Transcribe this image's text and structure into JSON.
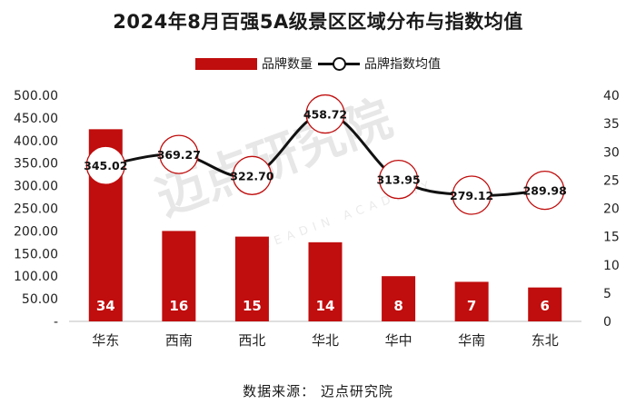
{
  "title": "2024年8月百强5A级景区区域分布与指数均值",
  "legend": {
    "bar_label": "品牌数量",
    "line_label": "品牌指数均值"
  },
  "source": "数据来源： 迈点研究院",
  "watermark": {
    "text": "迈点研究院",
    "sub": "MEADIN ACADEMY"
  },
  "colors": {
    "bar": "#c00d0d",
    "line": "#111111",
    "circle_stroke": "#c00d0d"
  },
  "chart_data": {
    "type": "bar+line",
    "categories": [
      "华东",
      "西南",
      "西北",
      "华北",
      "华中",
      "华南",
      "东北"
    ],
    "series": [
      {
        "name": "品牌数量",
        "type": "bar",
        "axis": "right",
        "values": [
          34,
          16,
          15,
          14,
          8,
          7,
          6
        ]
      },
      {
        "name": "品牌指数均值",
        "type": "line",
        "axis": "left",
        "values": [
          345.02,
          369.27,
          322.7,
          458.72,
          313.95,
          279.12,
          289.98
        ]
      }
    ],
    "left_axis": {
      "min": 0,
      "max": 500,
      "ticks": [
        "-",
        "50.00",
        "100.00",
        "150.00",
        "200.00",
        "250.00",
        "300.00",
        "350.00",
        "400.00",
        "450.00",
        "500.00"
      ]
    },
    "right_axis": {
      "min": 0,
      "max": 40,
      "ticks": [
        "0",
        "5",
        "10",
        "15",
        "20",
        "25",
        "30",
        "35",
        "40"
      ]
    },
    "bar_labels": [
      "34",
      "16",
      "15",
      "14",
      "8",
      "7",
      "6"
    ],
    "line_labels": [
      "345.02",
      "369.27",
      "322.70",
      "458.72",
      "313.95",
      "279.12",
      "289.98"
    ]
  }
}
